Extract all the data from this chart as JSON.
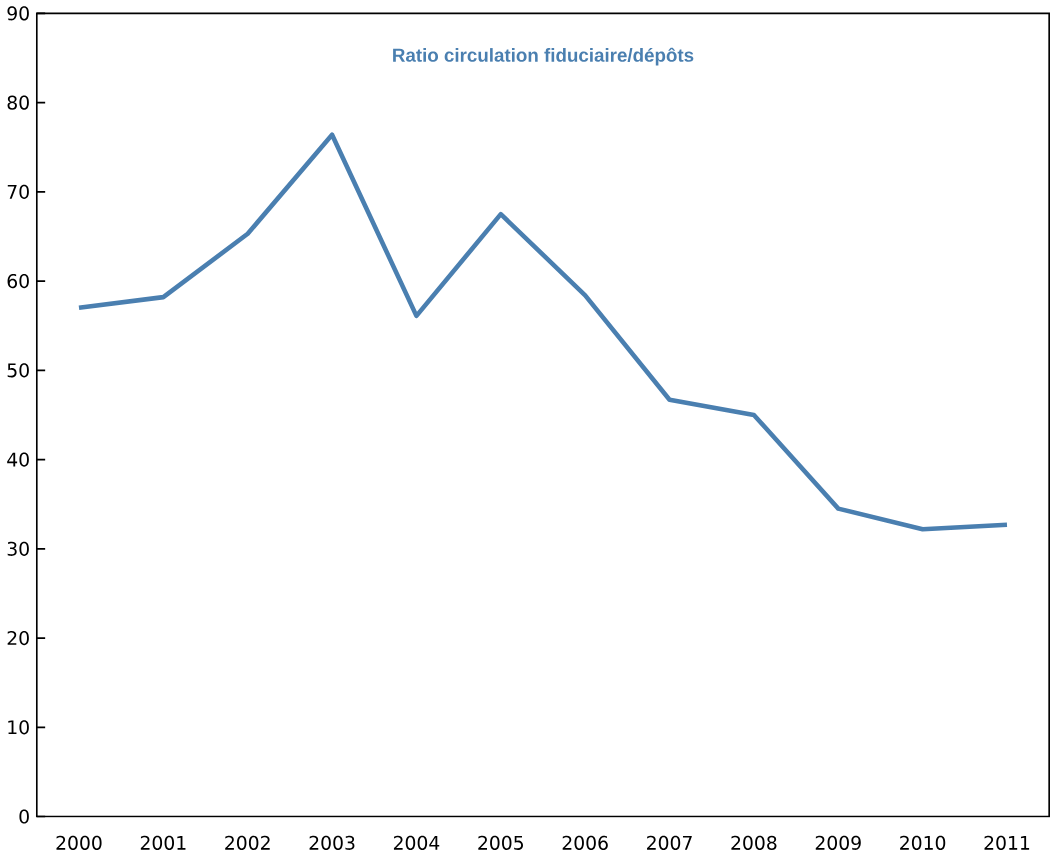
{
  "chart_data": {
    "type": "line",
    "title": "Ratio circulation fiduciaire/dépôts",
    "categories": [
      "2000",
      "2001",
      "2002",
      "2003",
      "2004",
      "2005",
      "2006",
      "2007",
      "2008",
      "2009",
      "2010",
      "2011"
    ],
    "series": [
      {
        "color": "#4a7fb0",
        "values": [
          57.0,
          58.2,
          65.3,
          76.4,
          56.1,
          67.5,
          58.4,
          46.7,
          45.0,
          34.5,
          32.2,
          32.7
        ]
      }
    ],
    "ylim": [
      0,
      90
    ],
    "yticks": [
      0,
      10,
      20,
      30,
      40,
      50,
      60,
      70,
      80,
      90
    ],
    "grid": false,
    "marker": "none",
    "line_style": "solid"
  }
}
